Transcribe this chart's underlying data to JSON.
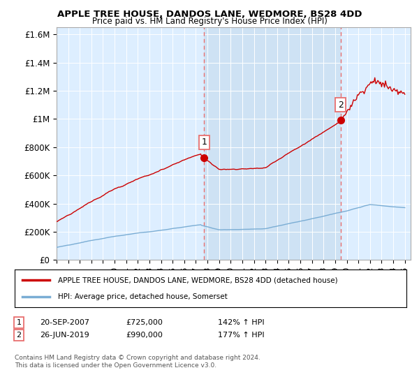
{
  "title": "APPLE TREE HOUSE, DANDOS LANE, WEDMORE, BS28 4DD",
  "subtitle": "Price paid vs. HM Land Registry's House Price Index (HPI)",
  "legend_label_red": "APPLE TREE HOUSE, DANDOS LANE, WEDMORE, BS28 4DD (detached house)",
  "legend_label_blue": "HPI: Average price, detached house, Somerset",
  "footer": "Contains HM Land Registry data © Crown copyright and database right 2024.\nThis data is licensed under the Open Government Licence v3.0.",
  "annotation1_date": "20-SEP-2007",
  "annotation1_price": "£725,000",
  "annotation1_hpi": "142% ↑ HPI",
  "annotation2_date": "26-JUN-2019",
  "annotation2_price": "£990,000",
  "annotation2_hpi": "177% ↑ HPI",
  "point1_x": 2007.72,
  "point1_y": 725000,
  "point2_x": 2019.48,
  "point2_y": 990000,
  "ylim": [
    0,
    1650000
  ],
  "xlim": [
    1995.0,
    2025.5
  ],
  "yticks": [
    0,
    200000,
    400000,
    600000,
    800000,
    1000000,
    1200000,
    1400000,
    1600000
  ],
  "ytick_labels": [
    "£0",
    "£200K",
    "£400K",
    "£600K",
    "£800K",
    "£1M",
    "£1.2M",
    "£1.4M",
    "£1.6M"
  ],
  "red_color": "#cc0000",
  "blue_color": "#7aadd4",
  "vline_color": "#e87070",
  "plot_bg": "#ddeeff",
  "shade_color": "#c8ddf0"
}
